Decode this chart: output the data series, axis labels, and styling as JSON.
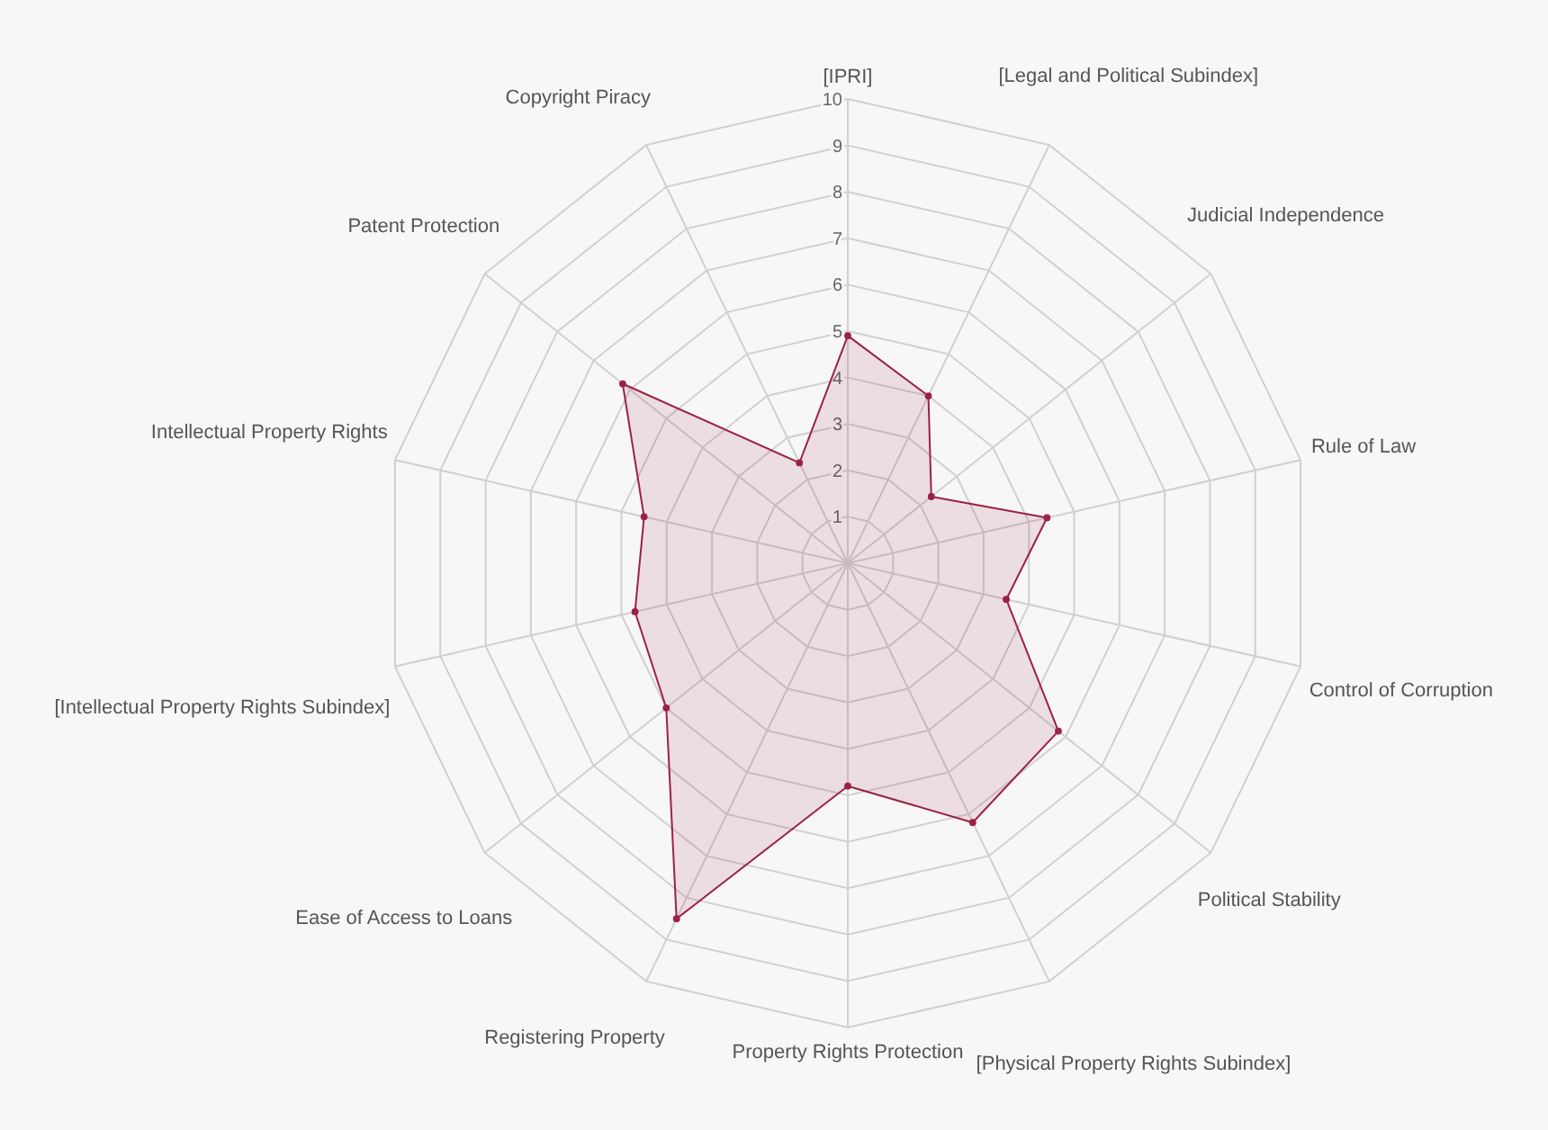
{
  "chart_data": {
    "type": "radar",
    "categories": [
      "[IPRI]",
      "[Legal and Political Subindex]",
      "Judicial Independence",
      "Rule of Law",
      "Control of Corruption",
      "Political Stability",
      "[Physical Property Rights Subindex]",
      "Property Rights Protection",
      "Registering Property",
      "Ease of Access to Loans",
      "[Intellectual Property Rights Subindex]",
      "Intellectual Property Rights",
      "Patent Protection",
      "Copyright Piracy"
    ],
    "series": [
      {
        "color": "#9b2245",
        "values": [
          4.9,
          4.0,
          2.3,
          4.4,
          3.5,
          5.8,
          6.2,
          4.8,
          8.5,
          5.0,
          4.7,
          4.5,
          6.2,
          2.4
        ]
      }
    ],
    "ylim": [
      0,
      10
    ],
    "yticks": [
      1,
      2,
      3,
      4,
      5,
      6,
      7,
      8,
      9,
      10
    ],
    "grid": true,
    "marker": "circle"
  }
}
